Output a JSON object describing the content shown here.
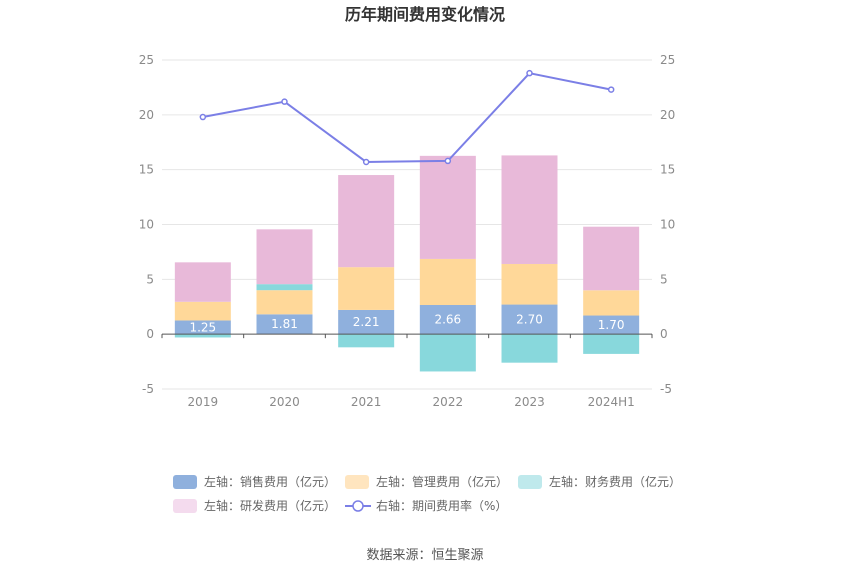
{
  "source": "数据来源：恒生聚源",
  "chart_data": {
    "type": "bar",
    "title": "历年期间费用变化情况",
    "categories": [
      "2019",
      "2020",
      "2021",
      "2022",
      "2023",
      "2024H1"
    ],
    "stacked": true,
    "left_axis": {
      "min": -5,
      "max": 25,
      "ticks": [
        -5,
        0,
        5,
        10,
        15,
        20,
        25
      ]
    },
    "right_axis": {
      "min": -5,
      "max": 25,
      "ticks": [
        -5,
        0,
        5,
        10,
        15,
        20,
        25
      ]
    },
    "grid": true,
    "legend_position": "bottom",
    "series": [
      {
        "name": "左轴：销售费用（亿元）",
        "type": "bar",
        "color": "#8fb0dd",
        "values": [
          1.25,
          1.81,
          2.21,
          2.66,
          2.7,
          1.7
        ],
        "labels": [
          "1.25",
          "1.81",
          "2.21",
          "2.66",
          "2.70",
          "1.70"
        ]
      },
      {
        "name": "左轴：管理费用（亿元）",
        "type": "bar",
        "color": "#ffd899",
        "values": [
          1.7,
          2.2,
          3.9,
          4.2,
          3.7,
          2.3
        ]
      },
      {
        "name": "左轴：财务费用（亿元）",
        "type": "bar",
        "color": "#88d8dc",
        "values": [
          -0.3,
          0.55,
          -1.2,
          -3.4,
          -2.6,
          -1.8
        ]
      },
      {
        "name": "左轴：研发费用（亿元）",
        "type": "bar",
        "color": "#e8b9d9",
        "values": [
          3.6,
          5.0,
          8.4,
          9.4,
          9.9,
          5.8
        ]
      },
      {
        "name": "右轴：期间费用率（%）",
        "type": "line",
        "color": "#7b7fe6",
        "values": [
          19.8,
          21.2,
          15.7,
          15.8,
          23.8,
          22.3
        ]
      }
    ]
  }
}
